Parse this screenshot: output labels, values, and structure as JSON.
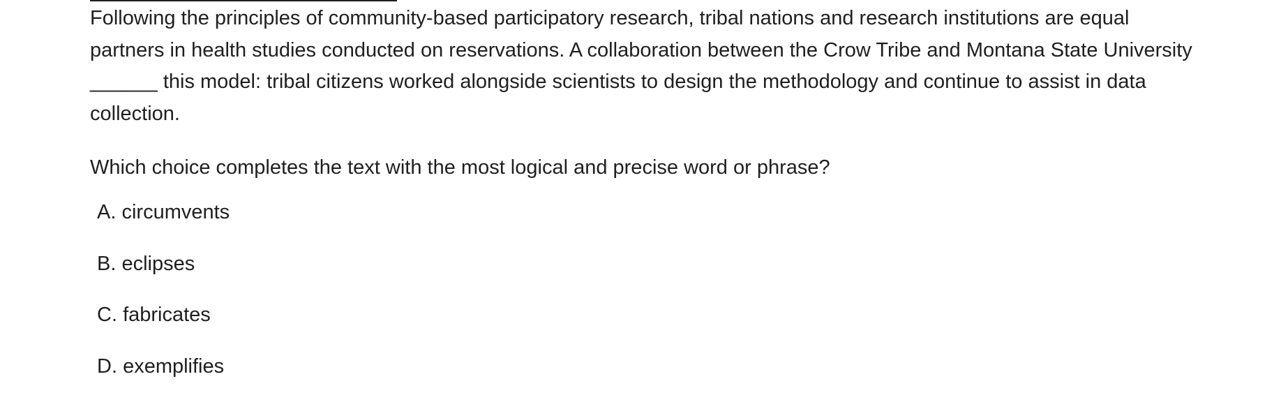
{
  "passage": {
    "text": "Following the principles of community-based participatory research, tribal nations and research institutions are equal partners in health studies conducted on reservations. A collaboration between the Crow Tribe and Montana State University ______ this model: tribal citizens worked alongside scientists to design the methodology and continue to assist in data collection."
  },
  "question": {
    "prompt": "Which choice completes the text with the most logical and precise word or phrase?"
  },
  "choices": [
    {
      "letter": "A.",
      "text": "circumvents"
    },
    {
      "letter": "B.",
      "text": "eclipses"
    },
    {
      "letter": "C.",
      "text": "fabricates"
    },
    {
      "letter": "D.",
      "text": "exemplifies"
    }
  ]
}
